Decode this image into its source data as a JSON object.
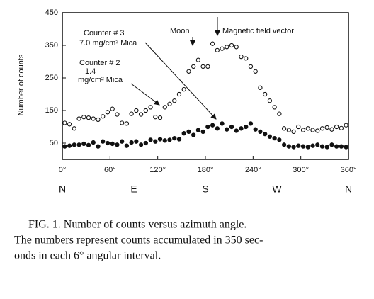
{
  "chart_data": {
    "type": "scatter",
    "y_label": "Number of counts",
    "annotations": [
      "Counter # 3",
      "7.0 mg/cm² Mica",
      "Counter # 2",
      "1.4",
      "mg/cm² Mica",
      "Moon",
      "Magnetic field vector"
    ],
    "compass": [
      "N",
      "E",
      "S",
      "W",
      "N"
    ],
    "x": [
      3,
      9,
      15,
      21,
      27,
      33,
      39,
      45,
      51,
      57,
      63,
      69,
      75,
      81,
      87,
      93,
      99,
      105,
      111,
      117,
      123,
      129,
      135,
      141,
      147,
      153,
      159,
      165,
      171,
      177,
      183,
      189,
      195,
      201,
      207,
      213,
      219,
      225,
      231,
      237,
      243,
      249,
      255,
      261,
      267,
      273,
      279,
      285,
      291,
      297,
      303,
      309,
      315,
      321,
      327,
      333,
      339,
      345,
      351,
      357
    ],
    "series": [
      {
        "name": "Counter # 3",
        "color": "#111",
        "marker": "open",
        "values": [
          112,
          108,
          95,
          125,
          130,
          128,
          125,
          122,
          132,
          145,
          155,
          138,
          112,
          110,
          140,
          150,
          138,
          150,
          160,
          130,
          128,
          160,
          170,
          180,
          200,
          215,
          270,
          285,
          305,
          285,
          285,
          355,
          335,
          340,
          345,
          350,
          345,
          315,
          310,
          285,
          270,
          220,
          200,
          180,
          160,
          140,
          95,
          90,
          85,
          100,
          90,
          95,
          90,
          88,
          95,
          98,
          92,
          100,
          96,
          105
        ]
      },
      {
        "name": "Counter # 2",
        "color": "#111",
        "marker": "filled",
        "values": [
          40,
          42,
          45,
          45,
          48,
          44,
          52,
          40,
          55,
          50,
          48,
          45,
          55,
          42,
          52,
          55,
          45,
          50,
          60,
          55,
          62,
          58,
          60,
          65,
          62,
          80,
          85,
          75,
          90,
          85,
          100,
          105,
          95,
          110,
          92,
          100,
          88,
          95,
          100,
          110,
          92,
          85,
          78,
          70,
          65,
          60,
          45,
          40,
          38,
          42,
          40,
          38,
          42,
          45,
          40,
          38,
          45,
          40,
          40,
          38
        ]
      }
    ],
    "xlim": [
      0,
      360
    ],
    "xticks": [
      {
        "value": 0,
        "label": "0°"
      },
      {
        "value": 60,
        "label": "60°"
      },
      {
        "value": 120,
        "label": "120°"
      },
      {
        "value": 180,
        "label": "180°"
      },
      {
        "value": 240,
        "label": "240°"
      },
      {
        "value": 300,
        "label": "300°"
      },
      {
        "value": 360,
        "label": "360°"
      }
    ],
    "ylim": [
      0,
      450
    ],
    "yticks": [
      50,
      150,
      250,
      350,
      450
    ]
  },
  "caption": [
    "FIG. 1.  Number of counts versus azimuth angle.",
    "The numbers represent counts accumulated in 350 sec-",
    "onds in each 6° angular interval."
  ]
}
